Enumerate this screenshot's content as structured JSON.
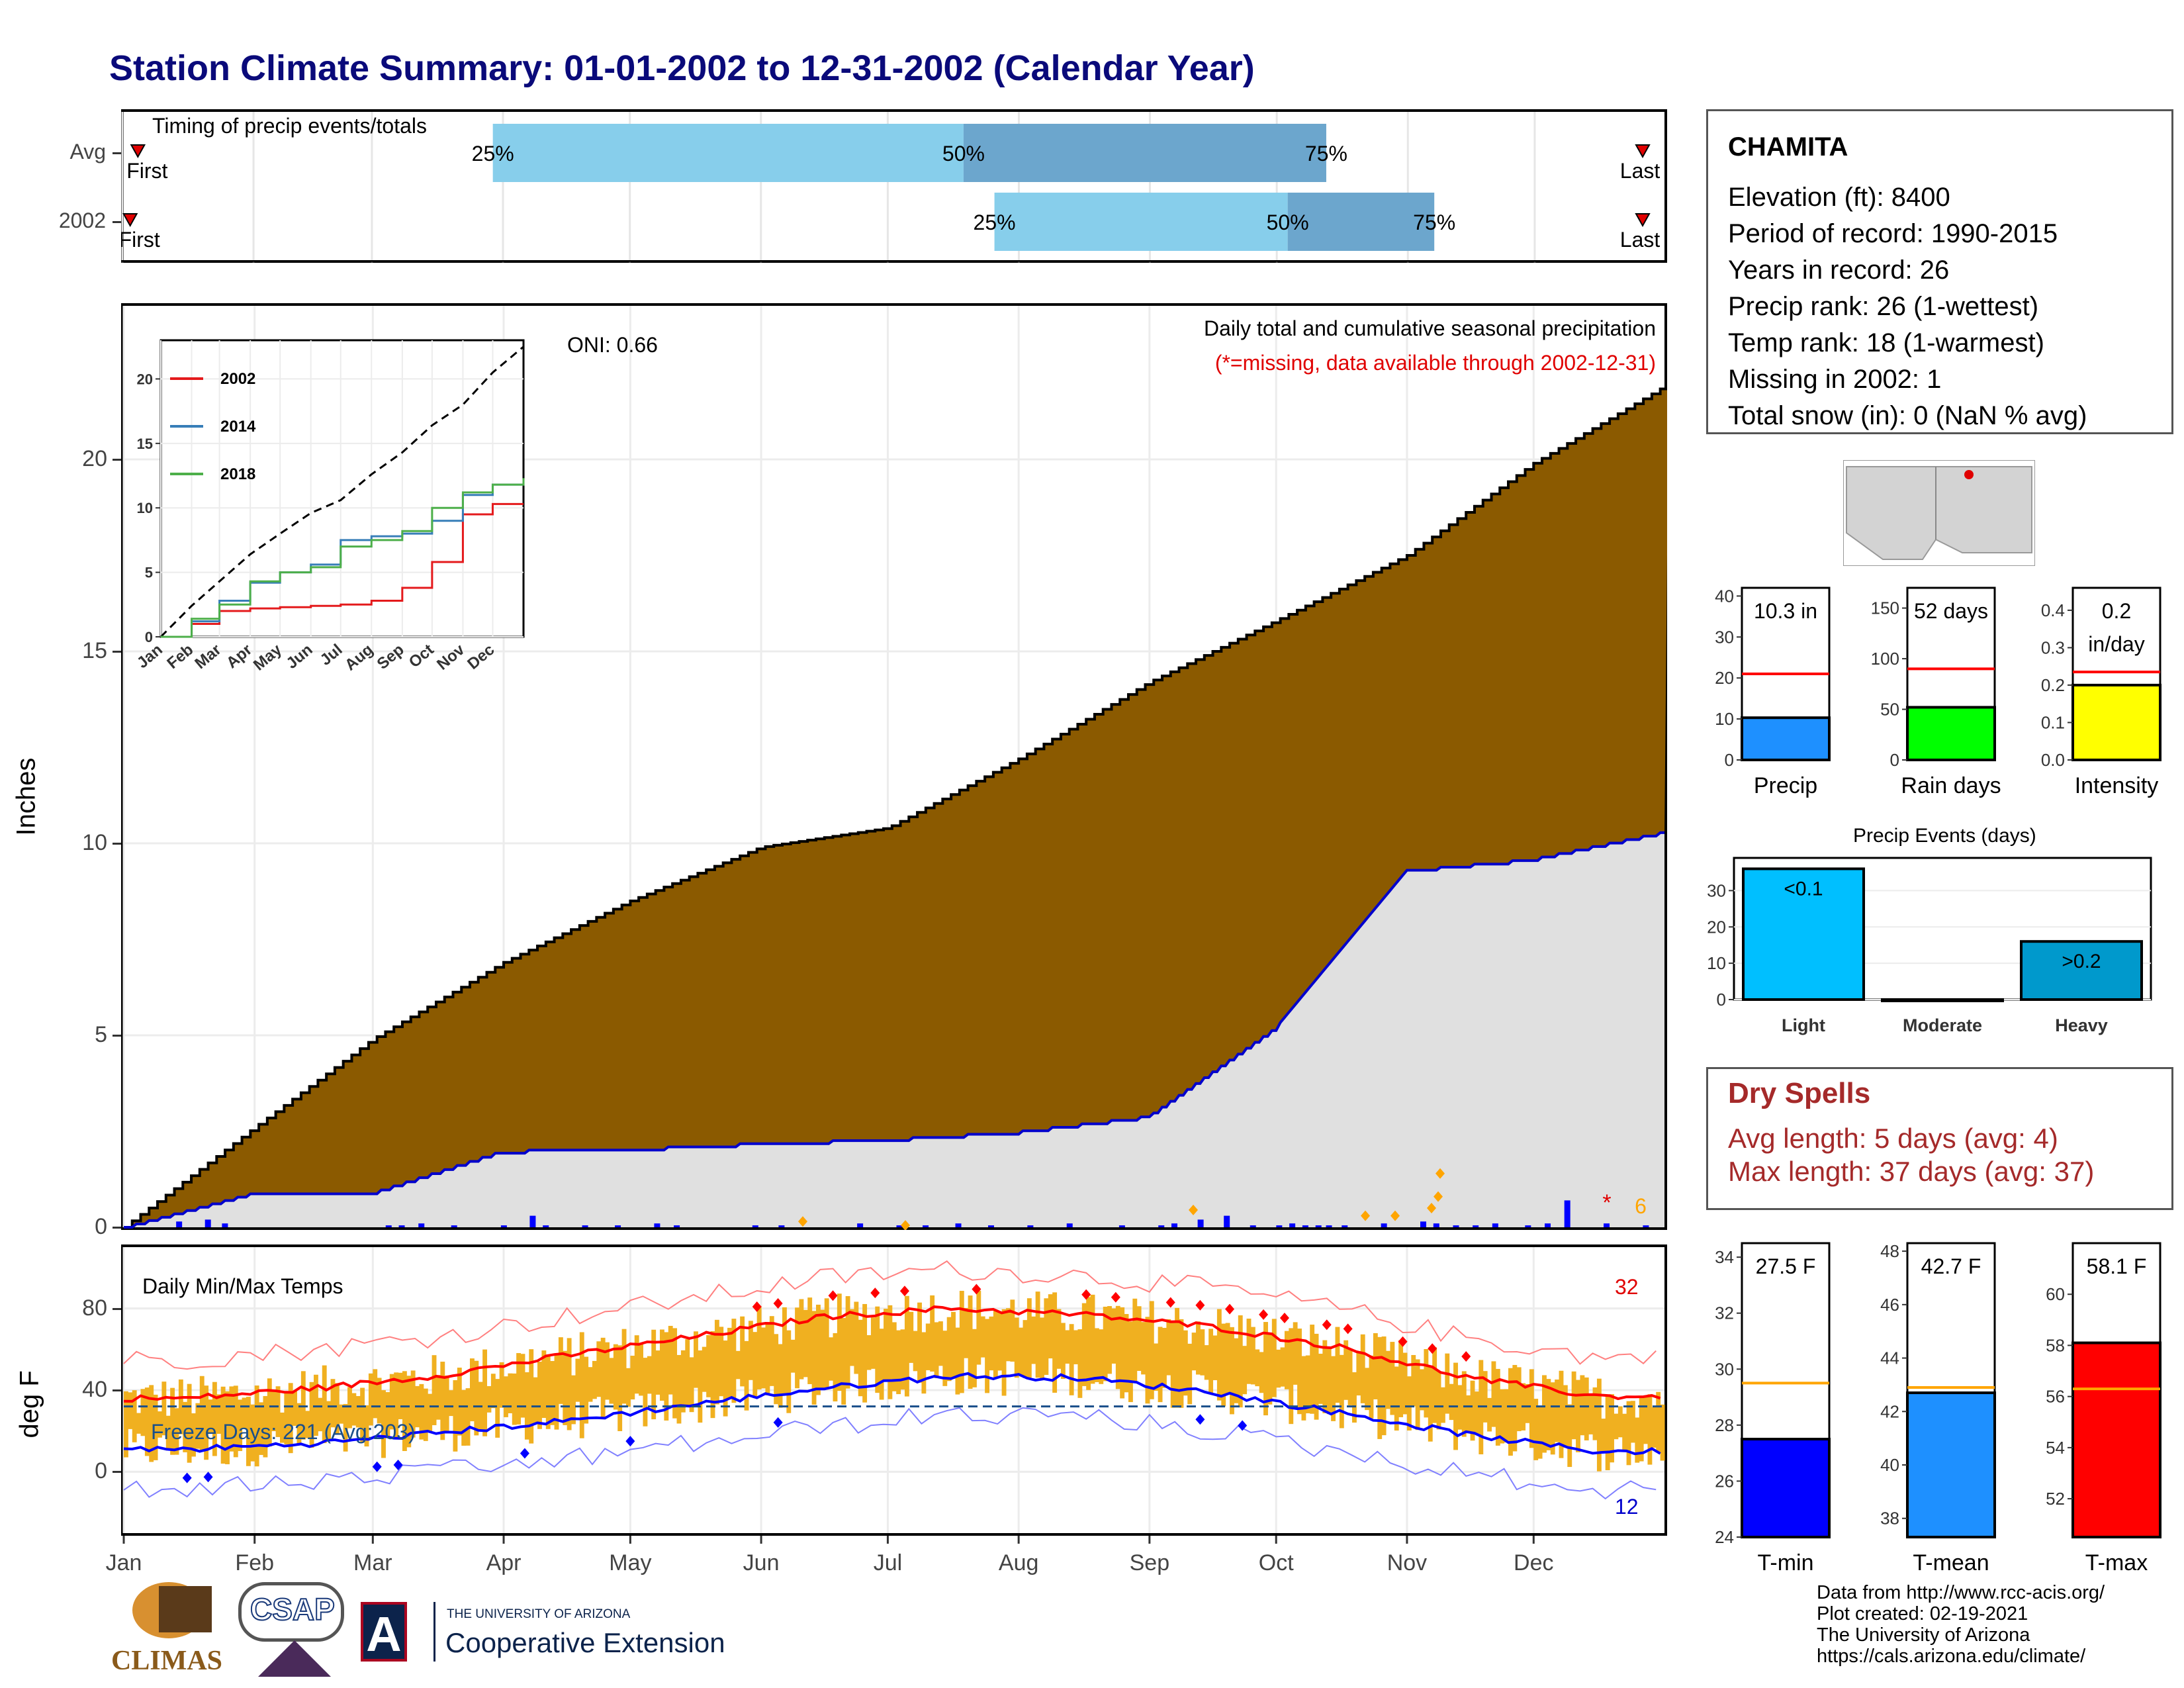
{
  "title": "Station Climate Summary: 01-01-2002 to 12-31-2002 (Calendar Year)",
  "timing": {
    "label": "Timing of precip events/totals",
    "rows": [
      {
        "name": "Avg",
        "first": 0.01,
        "p25": 0.24,
        "p50": 0.545,
        "p75": 0.78,
        "last": 0.985,
        "first_label": "First",
        "last_label": "Last"
      },
      {
        "name": "2002",
        "first": 0.005,
        "p25": 0.565,
        "p50": 0.755,
        "p75": 0.85,
        "last": 0.985,
        "first_label": "First",
        "last_label": "Last"
      }
    ],
    "pct_labels": [
      "25%",
      "50%",
      "75%"
    ]
  },
  "precip": {
    "ylabel": "Inches",
    "subtitle": "Daily total and cumulative seasonal precipitation",
    "missing_note": "(*=missing, data available through 2002-12-31)",
    "oni": "ONI: 0.66",
    "missing_marker": "*",
    "missing_count": "6",
    "yticks": [
      "0",
      "5",
      "10",
      "15",
      "20"
    ]
  },
  "temps": {
    "label": "Daily Min/Max Temps",
    "ylabel": "deg F",
    "freeze": "Freeze Days: 221 (Avg:203)",
    "count_hot": "32",
    "count_cold": "12",
    "yticks": [
      "0",
      "40",
      "80"
    ]
  },
  "months": [
    "Jan",
    "Feb",
    "Mar",
    "Apr",
    "May",
    "Jun",
    "Jul",
    "Aug",
    "Sep",
    "Oct",
    "Nov",
    "Dec"
  ],
  "inset": {
    "series": [
      {
        "name": "2002",
        "color": "#e41a1c"
      },
      {
        "name": "2014",
        "color": "#377eb8"
      },
      {
        "name": "2018",
        "color": "#4daf4a"
      }
    ],
    "yticks": [
      "0",
      "5",
      "10",
      "15",
      "20"
    ],
    "months": [
      "Jan",
      "Feb",
      "Mar",
      "Apr",
      "May",
      "Jun",
      "Jul",
      "Aug",
      "Sep",
      "Oct",
      "Nov",
      "Dec"
    ]
  },
  "station": {
    "name": "CHAMITA",
    "lines": [
      "Elevation (ft): 8400",
      "Period of record: 1990-2015",
      "Years in record: 26",
      "Precip rank: 26 (1-wettest)",
      "Temp rank: 18 (1-warmest)",
      "Missing in 2002: 1",
      "Total snow (in): 0 (NaN % avg)"
    ]
  },
  "mini_bars": [
    {
      "label": "Precip",
      "value_text": "10.3 in",
      "value": 10.3,
      "avg": 21,
      "max": 42,
      "ticks": [
        "0",
        "10",
        "20",
        "30",
        "40"
      ],
      "color": "#1e90ff"
    },
    {
      "label": "Rain days",
      "value_text": "52 days",
      "value": 52,
      "avg": 90,
      "max": 170,
      "ticks": [
        "0",
        "50",
        "100",
        "150"
      ],
      "color": "#00ff00"
    },
    {
      "label": "Intensity",
      "value_text": "0.2 in/day",
      "value": 0.2,
      "avg": 0.235,
      "max": 0.46,
      "ticks": [
        "0.0",
        "0.1",
        "0.2",
        "0.3",
        "0.4"
      ],
      "color": "#ffff00"
    }
  ],
  "events": {
    "title": "Precip Events (days)",
    "categories": [
      "Light",
      "Moderate",
      "Heavy"
    ],
    "values": [
      36,
      0,
      16
    ],
    "bar_labels": [
      "<0.1",
      "",
      ">0.2"
    ],
    "ticks": [
      "0",
      "10",
      "20",
      "30"
    ],
    "colors": [
      "#00bfff",
      "#00bfff",
      "#0099cc"
    ]
  },
  "dry": {
    "title": "Dry Spells",
    "lines": [
      "Avg length: 5 days (avg: 4)",
      "Max length: 37 days (avg: 37)"
    ]
  },
  "temp_bars": [
    {
      "label": "T-min",
      "value_text": "27.5 F",
      "value": 27.5,
      "avg": 29.5,
      "ymin": 24,
      "ymax": 34.5,
      "ticks": [
        "24",
        "26",
        "28",
        "30",
        "32",
        "34"
      ],
      "color": "#0000ff"
    },
    {
      "label": "T-mean",
      "value_text": "42.7 F",
      "value": 42.7,
      "avg": 42.9,
      "ymin": 37.3,
      "ymax": 48.3,
      "ticks": [
        "38",
        "40",
        "42",
        "44",
        "46",
        "48"
      ],
      "color": "#1e90ff"
    },
    {
      "label": "T-max",
      "value_text": "58.1 F",
      "value": 58.1,
      "avg": 56.3,
      "ymin": 50.5,
      "ymax": 62,
      "ticks": [
        "52",
        "54",
        "56",
        "58",
        "60"
      ],
      "color": "#ff0000"
    }
  ],
  "logos": {
    "climas": "CLIMAS",
    "csap": "CSAP",
    "ua_small": "THE UNIVERSITY OF ARIZONA",
    "ua_big": "Cooperative Extension",
    "ua_letter": "A"
  },
  "footer": [
    "Data from http://www.rcc-acis.org/",
    "Plot created: 02-19-2021",
    "The University of Arizona",
    "https://cals.arizona.edu/climate/"
  ],
  "chart_data": [
    {
      "type": "area",
      "title": "Daily total and cumulative seasonal precipitation",
      "ylabel": "Inches",
      "ylim": [
        0,
        24
      ],
      "x": [
        "Jan",
        "Feb",
        "Mar",
        "Apr",
        "May",
        "Jun",
        "Jul",
        "Aug",
        "Sep",
        "Oct",
        "Nov",
        "Dec",
        "Dec 31"
      ],
      "series": [
        {
          "name": "avg",
          "values": [
            0,
            2.6,
            4.9,
            6.9,
            8.5,
            9.9,
            10.4,
            12.2,
            14.2,
            15.8,
            17.5,
            19.9,
            21.9
          ]
        },
        {
          "name": "2002",
          "values": [
            0,
            0.9,
            0.9,
            2.0,
            2.05,
            2.2,
            2.3,
            2.5,
            2.9,
            5.2,
            9.3,
            9.6,
            10.3
          ]
        }
      ]
    },
    {
      "type": "line",
      "title": "Daily Min/Max Temps",
      "ylabel": "deg F",
      "ylim": [
        -30,
        110
      ],
      "x": [
        "Jan",
        "Feb",
        "Mar",
        "Apr",
        "May",
        "Jun",
        "Jul",
        "Aug",
        "Sep",
        "Oct",
        "Nov",
        "Dec"
      ],
      "series": [
        {
          "name": "avg max",
          "values": [
            36,
            41,
            47,
            57,
            66,
            76,
            80,
            77,
            71,
            61,
            46,
            37
          ]
        },
        {
          "name": "avg min",
          "values": [
            11,
            14,
            19,
            25,
            33,
            41,
            47,
            46,
            39,
            29,
            18,
            10
          ]
        }
      ]
    }
  ]
}
